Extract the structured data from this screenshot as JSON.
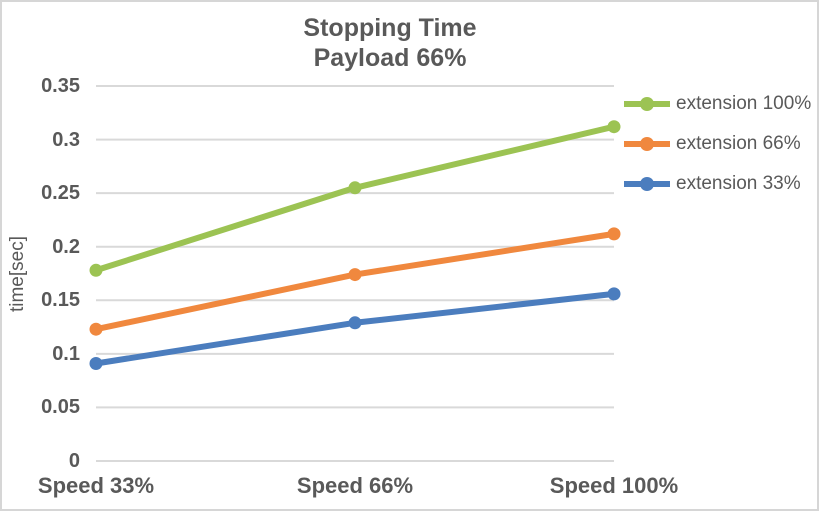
{
  "colors": {
    "background": "#FFFFFF",
    "border": "#D6D6D6",
    "text": "#595959",
    "grid": "#D9D9D9"
  },
  "chart_data": {
    "type": "line",
    "title": "Stopping Time",
    "subtitle": "Payload 66%",
    "ylabel": "time[sec]",
    "xlabel": "",
    "categories": [
      "Speed 33%",
      "Speed 66%",
      "Speed 100%"
    ],
    "series": [
      {
        "name": "extension 100%",
        "color": "#9CC353",
        "values": [
          0.178,
          0.255,
          0.312
        ]
      },
      {
        "name": "extension 66%",
        "color": "#F0883E",
        "values": [
          0.123,
          0.174,
          0.212
        ]
      },
      {
        "name": "extension 33%",
        "color": "#4B7DBE",
        "values": [
          0.091,
          0.129,
          0.156
        ]
      }
    ],
    "ylim": [
      0,
      0.35
    ],
    "y_ticks": [
      0,
      0.05,
      0.1,
      0.15,
      0.2,
      0.25,
      0.3,
      0.35
    ],
    "y_tick_labels": [
      "0",
      "0.05",
      "0.1",
      "0.15",
      "0.2",
      "0.25",
      "0.3",
      "0.35"
    ],
    "grid": true,
    "legend_position": "right",
    "markers": "circle"
  }
}
